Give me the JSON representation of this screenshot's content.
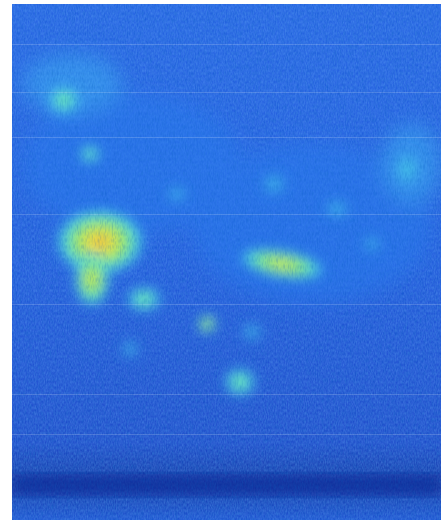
{
  "image": {
    "description_kind": "false-color intensity scan",
    "palette": {
      "deep": "#0a2a9a",
      "base": "#1a4fd8",
      "mid": "#2b7df0",
      "light": "#3fb0f5",
      "cyan": "#4fe0e8",
      "green": "#8ee86a",
      "yellow": "#f0e84a",
      "orange": "#f0a030"
    }
  }
}
